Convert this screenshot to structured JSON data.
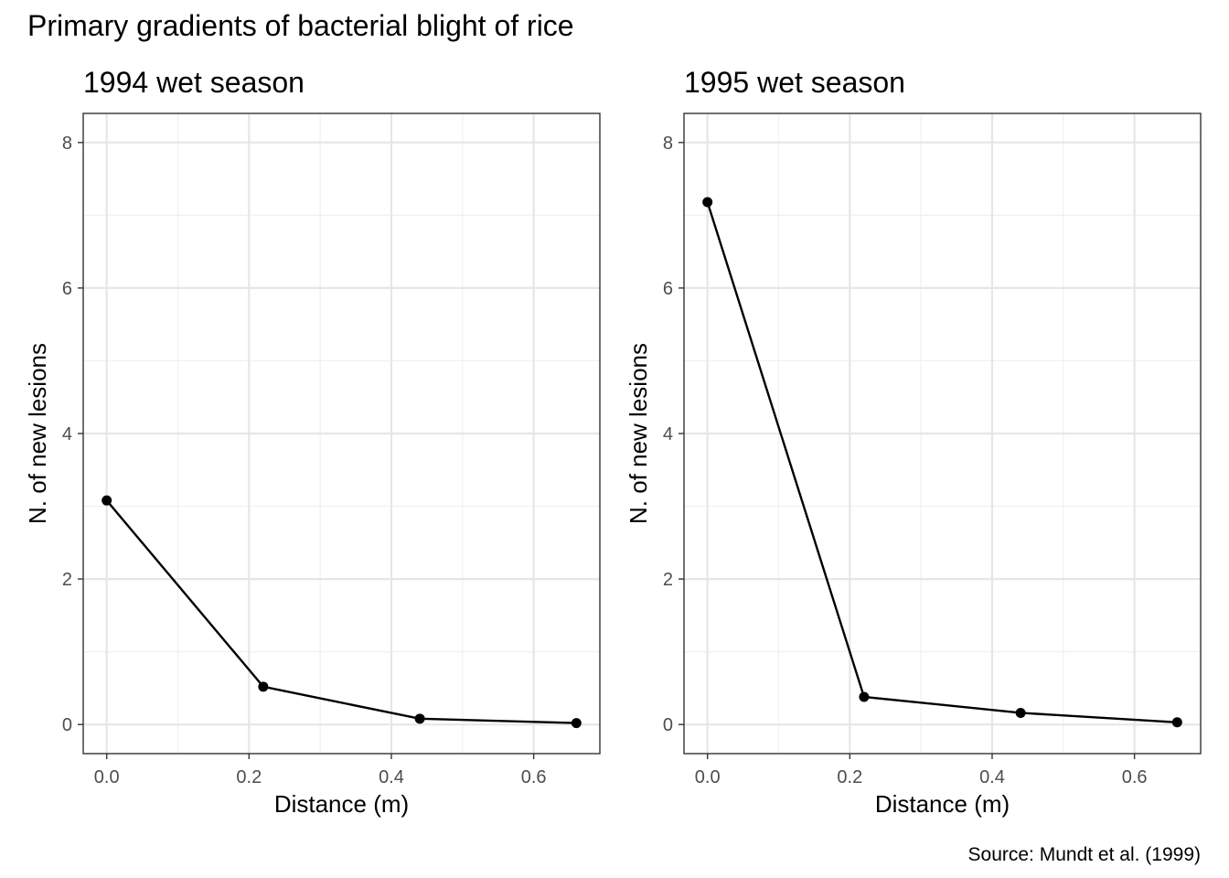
{
  "title": "Primary gradients of bacterial blight of rice",
  "caption": "Source: Mundt et al. (1999)",
  "colors": {
    "line": "#000000",
    "point": "#000000",
    "panel_border": "#333333",
    "grid_major": "#e6e6e6",
    "grid_minor": "#f0f0f0",
    "tick_text": "#4d4d4d"
  },
  "chart_data": [
    {
      "type": "line",
      "subtitle": "1994 wet season",
      "xlabel": "Distance (m)",
      "ylabel": "N. of new lesions",
      "xlim": [
        -0.033,
        0.693
      ],
      "ylim": [
        -0.4,
        8.4
      ],
      "x_ticks": [
        0.0,
        0.2,
        0.4,
        0.6
      ],
      "x_tick_labels": [
        "0.0",
        "0.2",
        "0.4",
        "0.6"
      ],
      "y_ticks": [
        0,
        2,
        4,
        6,
        8
      ],
      "y_tick_labels": [
        "0",
        "2",
        "4",
        "6",
        "8"
      ],
      "grid": true,
      "markers": true,
      "series": [
        {
          "x": [
            0.0,
            0.22,
            0.44,
            0.66
          ],
          "values": [
            3.08,
            0.52,
            0.08,
            0.02
          ]
        }
      ]
    },
    {
      "type": "line",
      "subtitle": "1995 wet season",
      "xlabel": "Distance (m)",
      "ylabel": "N. of new lesions",
      "xlim": [
        -0.033,
        0.693
      ],
      "ylim": [
        -0.4,
        8.4
      ],
      "x_ticks": [
        0.0,
        0.2,
        0.4,
        0.6
      ],
      "x_tick_labels": [
        "0.0",
        "0.2",
        "0.4",
        "0.6"
      ],
      "y_ticks": [
        0,
        2,
        4,
        6,
        8
      ],
      "y_tick_labels": [
        "0",
        "2",
        "4",
        "6",
        "8"
      ],
      "grid": true,
      "markers": true,
      "series": [
        {
          "x": [
            0.0,
            0.22,
            0.44,
            0.66
          ],
          "values": [
            7.18,
            0.38,
            0.16,
            0.03
          ]
        }
      ]
    }
  ]
}
